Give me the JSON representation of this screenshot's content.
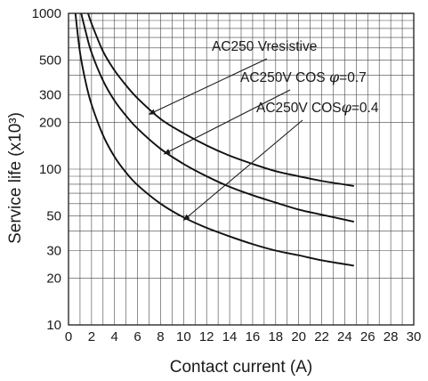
{
  "chart_data": {
    "type": "line",
    "xlabel": "Contact current (A)",
    "ylabel": "Service life (x10³)",
    "xlim": [
      0,
      30
    ],
    "ylim": [
      10,
      1000
    ],
    "yscale": "log",
    "grid": true,
    "x_ticks": [
      "0",
      "2",
      "4",
      "6",
      "8",
      "10",
      "12",
      "14",
      "16",
      "18",
      "20",
      "22",
      "24",
      "26",
      "28",
      "30"
    ],
    "y_ticks": [
      {
        "value": 10,
        "label": "10"
      },
      {
        "value": 20,
        "label": "20"
      },
      {
        "value": 30,
        "label": "30"
      },
      {
        "value": 50,
        "label": "50"
      },
      {
        "value": 100,
        "label": "100"
      },
      {
        "value": 200,
        "label": "200"
      },
      {
        "value": 300,
        "label": "300"
      },
      {
        "value": 500,
        "label": "500"
      },
      {
        "value": 1000,
        "label": "1000"
      }
    ],
    "series": [
      {
        "label_parts": [
          "AC250 V",
          "resistive"
        ],
        "x": [
          1.7,
          2,
          3,
          4,
          5,
          6,
          8,
          10,
          12,
          14,
          16,
          18,
          20,
          22,
          24.8
        ],
        "y": [
          1000,
          860,
          570,
          430,
          345,
          285,
          210,
          170,
          142,
          122,
          108,
          97,
          90,
          84,
          78
        ]
      },
      {
        "label_parts": [
          "AC250V COS ",
          "φ",
          "=0.7"
        ],
        "x": [
          1.1,
          1.5,
          2,
          3,
          4,
          5,
          6,
          8,
          10,
          12,
          14,
          16,
          18,
          20,
          22,
          24.8
        ],
        "y": [
          1000,
          760,
          560,
          370,
          275,
          220,
          182,
          135,
          108,
          90,
          77,
          68,
          61,
          55,
          51,
          46
        ]
      },
      {
        "label_parts": [
          "AC250V COS",
          "φ",
          "=0.4"
        ],
        "x": [
          0.6,
          1,
          1.5,
          2,
          3,
          4,
          5,
          6,
          8,
          10,
          12,
          14,
          16,
          18,
          20,
          22,
          24.8
        ],
        "y": [
          1000,
          560,
          360,
          260,
          165,
          120,
          95,
          79,
          60,
          49,
          42,
          37,
          33,
          30,
          28,
          26,
          24
        ]
      }
    ],
    "annotations": [
      {
        "series": 0,
        "arrow_to": [
          7.0,
          225
        ]
      },
      {
        "series": 1,
        "arrow_to": [
          8.3,
          125
        ]
      },
      {
        "series": 2,
        "arrow_to": [
          10.0,
          47
        ]
      }
    ]
  }
}
